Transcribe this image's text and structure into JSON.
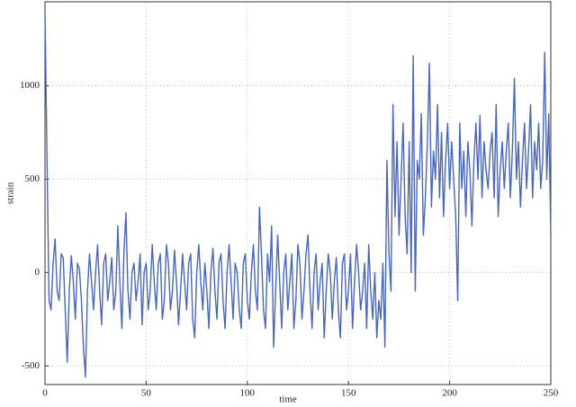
{
  "chart_data": {
    "type": "line",
    "xlabel": "time",
    "ylabel": "strain",
    "xlim": [
      0,
      250
    ],
    "ylim": [
      -600,
      1450
    ],
    "xticks": [
      0,
      50,
      100,
      150,
      200,
      250
    ],
    "yticks": [
      -500,
      0,
      500,
      1000
    ],
    "grid": true,
    "series": [
      {
        "color": "#4a66b8",
        "x": [
          0,
          1,
          2,
          3,
          4,
          5,
          6,
          7,
          8,
          9,
          10,
          11,
          12,
          13,
          14,
          15,
          16,
          17,
          18,
          19,
          20,
          21,
          22,
          23,
          24,
          25,
          26,
          27,
          28,
          29,
          30,
          31,
          32,
          33,
          34,
          35,
          36,
          37,
          38,
          39,
          40,
          41,
          42,
          43,
          44,
          45,
          46,
          47,
          48,
          49,
          50,
          51,
          52,
          53,
          54,
          55,
          56,
          57,
          58,
          59,
          60,
          61,
          62,
          63,
          64,
          65,
          66,
          67,
          68,
          69,
          70,
          71,
          72,
          73,
          74,
          75,
          76,
          77,
          78,
          79,
          80,
          81,
          82,
          83,
          84,
          85,
          86,
          87,
          88,
          89,
          90,
          91,
          92,
          93,
          94,
          95,
          96,
          97,
          98,
          99,
          100,
          101,
          102,
          103,
          104,
          105,
          106,
          107,
          108,
          109,
          110,
          111,
          112,
          113,
          114,
          115,
          116,
          117,
          118,
          119,
          120,
          121,
          122,
          123,
          124,
          125,
          126,
          127,
          128,
          129,
          130,
          131,
          132,
          133,
          134,
          135,
          136,
          137,
          138,
          139,
          140,
          141,
          142,
          143,
          144,
          145,
          146,
          147,
          148,
          149,
          150,
          151,
          152,
          153,
          154,
          155,
          156,
          157,
          158,
          159,
          160,
          161,
          162,
          163,
          164,
          165,
          166,
          167,
          168,
          169,
          170,
          171,
          172,
          173,
          174,
          175,
          176,
          177,
          178,
          179,
          180,
          181,
          182,
          183,
          184,
          185,
          186,
          187,
          188,
          189,
          190,
          191,
          192,
          193,
          194,
          195,
          196,
          197,
          198,
          199,
          200,
          201,
          202,
          203,
          204,
          205,
          206,
          207,
          208,
          209,
          210,
          211,
          212,
          213,
          214,
          215,
          216,
          217,
          218,
          219,
          220,
          221,
          222,
          223,
          224,
          225,
          226,
          227,
          228,
          229,
          230,
          231,
          232,
          233,
          234,
          235,
          236,
          237,
          238,
          239,
          240,
          241,
          242,
          243,
          244,
          245,
          246,
          247,
          248,
          249,
          250
        ],
        "values": [
          1400,
          600,
          -150,
          -200,
          50,
          180,
          -100,
          -150,
          100,
          80,
          -200,
          -480,
          -100,
          90,
          -50,
          -250,
          50,
          20,
          -150,
          -400,
          -560,
          -100,
          100,
          -50,
          -200,
          0,
          150,
          -100,
          -280,
          50,
          100,
          -150,
          -50,
          80,
          -200,
          -100,
          250,
          -50,
          -300,
          100,
          320,
          -100,
          -250,
          0,
          50,
          -150,
          -50,
          100,
          -280,
          0,
          50,
          -200,
          -100,
          150,
          -50,
          -200,
          50,
          100,
          -250,
          -150,
          150,
          50,
          -200,
          -100,
          120,
          -50,
          -280,
          -100,
          100,
          -50,
          -200,
          50,
          100,
          -250,
          -350,
          0,
          150,
          -50,
          -200,
          50,
          -100,
          -300,
          0,
          130,
          -100,
          -250,
          50,
          100,
          -150,
          -300,
          0,
          150,
          -50,
          -250,
          50,
          0,
          -200,
          -300,
          50,
          100,
          -150,
          -250,
          0,
          150,
          -100,
          -200,
          350,
          100,
          -200,
          -300,
          100,
          -50,
          250,
          -400,
          -100,
          200,
          -50,
          -300,
          0,
          100,
          -200,
          -50,
          100,
          -300,
          -150,
          150,
          50,
          -250,
          -100,
          100,
          200,
          -100,
          -300,
          0,
          100,
          -200,
          -50,
          50,
          -350,
          -100,
          100,
          0,
          -250,
          -50,
          80,
          -200,
          -350,
          50,
          100,
          -200,
          -100,
          100,
          -300,
          -50,
          150,
          0,
          -200,
          -100,
          50,
          -300,
          150,
          -100,
          -250,
          0,
          -350,
          -150,
          -250,
          50,
          -400,
          600,
          100,
          -100,
          900,
          300,
          700,
          200,
          500,
          800,
          300,
          100,
          700,
          0,
          1160,
          -100,
          600,
          500,
          850,
          200,
          400,
          700,
          1120,
          350,
          650,
          500,
          900,
          400,
          750,
          300,
          600,
          800,
          450,
          700,
          500,
          300,
          -150,
          800,
          450,
          650,
          300,
          700,
          550,
          250,
          600,
          800,
          500,
          840,
          400,
          700,
          550,
          450,
          650,
          750,
          400,
          900,
          300,
          550,
          700,
          450,
          650,
          800,
          400,
          650,
          1040,
          500,
          700,
          350,
          600,
          800,
          450,
          650,
          900,
          400,
          700,
          550,
          800,
          450,
          600,
          1180,
          500,
          850,
          200
        ]
      }
    ]
  }
}
